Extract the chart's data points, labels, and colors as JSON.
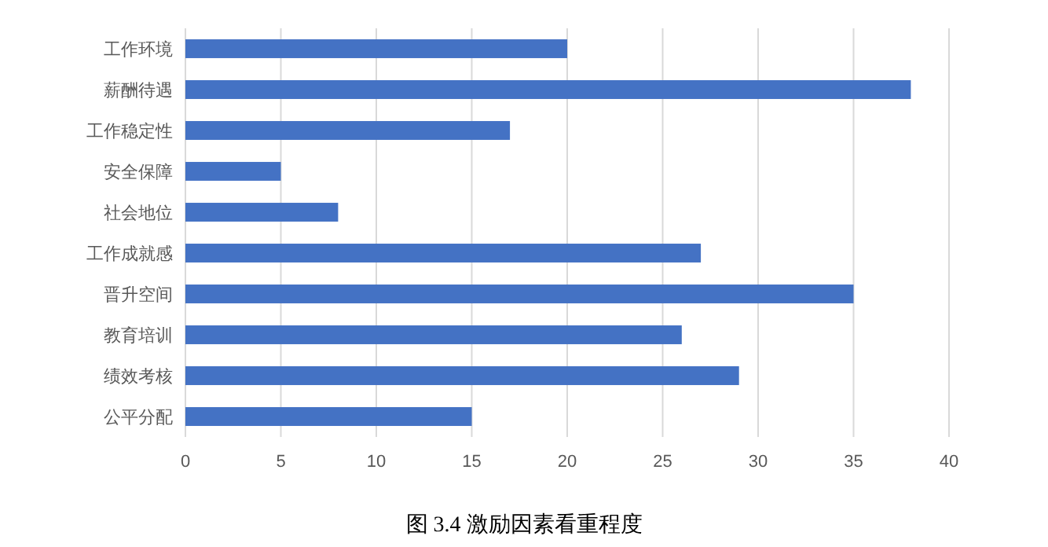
{
  "chart_data": {
    "type": "bar",
    "orientation": "horizontal",
    "title": "图 3.4  激励因素看重程度",
    "categories": [
      "工作环境",
      "薪酬待遇",
      "工作稳定性",
      "安全保障",
      "社会地位",
      "工作成就感",
      "晋升空间",
      "教育培训",
      "绩效考核",
      "公平分配"
    ],
    "values": [
      20,
      38,
      17,
      5,
      8,
      27,
      35,
      26,
      29,
      15
    ],
    "color": "#4472c4",
    "xlim": [
      0,
      40
    ],
    "xticks": [
      0,
      5,
      10,
      15,
      20,
      25,
      30,
      35,
      40
    ],
    "grid": "x"
  }
}
